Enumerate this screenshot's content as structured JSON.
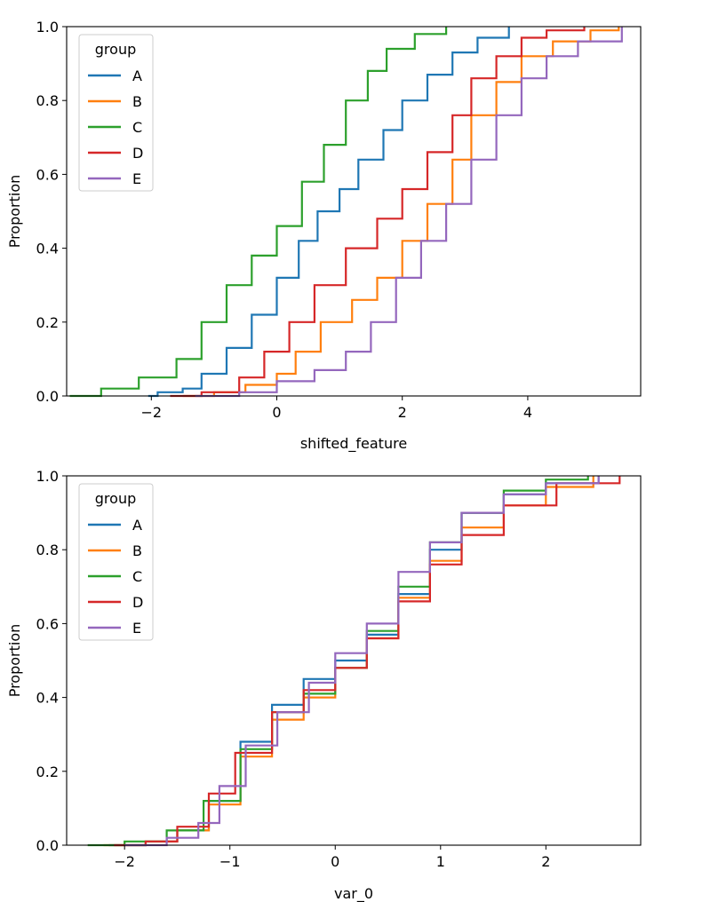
{
  "chart_data": [
    {
      "type": "line",
      "subtype": "ecdf",
      "title": "",
      "xlabel": "shifted_feature",
      "ylabel": "Proportion",
      "xlim": [
        -3.35,
        5.8
      ],
      "ylim": [
        0.0,
        1.0
      ],
      "xticks": [
        -2,
        0,
        2,
        4
      ],
      "xtick_labels": [
        "−2",
        "0",
        "2",
        "4"
      ],
      "yticks": [
        0.0,
        0.2,
        0.4,
        0.6,
        0.8,
        1.0
      ],
      "ytick_labels": [
        "0.0",
        "0.2",
        "0.4",
        "0.6",
        "0.8",
        "1.0"
      ],
      "grid": false,
      "legend": {
        "title": "group",
        "position": "top-left"
      },
      "series": [
        {
          "name": "A",
          "color": "#1f77b4",
          "points": [
            [
              -2.05,
              0.0
            ],
            [
              -1.9,
              0.01
            ],
            [
              -1.5,
              0.02
            ],
            [
              -1.2,
              0.06
            ],
            [
              -0.8,
              0.13
            ],
            [
              -0.4,
              0.22
            ],
            [
              0.0,
              0.32
            ],
            [
              0.35,
              0.42
            ],
            [
              0.65,
              0.5
            ],
            [
              1.0,
              0.56
            ],
            [
              1.3,
              0.64
            ],
            [
              1.7,
              0.72
            ],
            [
              2.0,
              0.8
            ],
            [
              2.4,
              0.87
            ],
            [
              2.8,
              0.93
            ],
            [
              3.2,
              0.97
            ],
            [
              3.7,
              1.0
            ]
          ]
        },
        {
          "name": "B",
          "color": "#ff7f0e",
          "points": [
            [
              -1.5,
              0.0
            ],
            [
              -1.0,
              0.01
            ],
            [
              -0.5,
              0.03
            ],
            [
              0.0,
              0.06
            ],
            [
              0.3,
              0.12
            ],
            [
              0.7,
              0.2
            ],
            [
              1.2,
              0.26
            ],
            [
              1.6,
              0.32
            ],
            [
              2.0,
              0.42
            ],
            [
              2.4,
              0.52
            ],
            [
              2.8,
              0.64
            ],
            [
              3.1,
              0.76
            ],
            [
              3.5,
              0.85
            ],
            [
              3.9,
              0.92
            ],
            [
              4.4,
              0.96
            ],
            [
              5.0,
              0.99
            ],
            [
              5.45,
              1.0
            ]
          ]
        },
        {
          "name": "C",
          "color": "#2ca02c",
          "points": [
            [
              -3.3,
              0.0
            ],
            [
              -2.8,
              0.02
            ],
            [
              -2.2,
              0.05
            ],
            [
              -1.6,
              0.1
            ],
            [
              -1.2,
              0.2
            ],
            [
              -0.8,
              0.3
            ],
            [
              -0.4,
              0.38
            ],
            [
              0.0,
              0.46
            ],
            [
              0.4,
              0.58
            ],
            [
              0.75,
              0.68
            ],
            [
              1.1,
              0.8
            ],
            [
              1.45,
              0.88
            ],
            [
              1.75,
              0.94
            ],
            [
              2.2,
              0.98
            ],
            [
              2.7,
              1.0
            ]
          ]
        },
        {
          "name": "D",
          "color": "#d62728",
          "points": [
            [
              -1.7,
              0.0
            ],
            [
              -1.2,
              0.01
            ],
            [
              -0.6,
              0.05
            ],
            [
              -0.2,
              0.12
            ],
            [
              0.2,
              0.2
            ],
            [
              0.6,
              0.3
            ],
            [
              1.1,
              0.4
            ],
            [
              1.6,
              0.48
            ],
            [
              2.0,
              0.56
            ],
            [
              2.4,
              0.66
            ],
            [
              2.8,
              0.76
            ],
            [
              3.1,
              0.86
            ],
            [
              3.5,
              0.92
            ],
            [
              3.9,
              0.97
            ],
            [
              4.3,
              0.99
            ],
            [
              4.9,
              1.0
            ]
          ]
        },
        {
          "name": "E",
          "color": "#9467bd",
          "points": [
            [
              -1.3,
              0.0
            ],
            [
              -0.6,
              0.01
            ],
            [
              0.0,
              0.04
            ],
            [
              0.6,
              0.07
            ],
            [
              1.1,
              0.12
            ],
            [
              1.5,
              0.2
            ],
            [
              1.9,
              0.32
            ],
            [
              2.3,
              0.42
            ],
            [
              2.7,
              0.52
            ],
            [
              3.1,
              0.64
            ],
            [
              3.5,
              0.76
            ],
            [
              3.9,
              0.86
            ],
            [
              4.3,
              0.92
            ],
            [
              4.8,
              0.96
            ],
            [
              5.5,
              1.0
            ]
          ]
        }
      ]
    },
    {
      "type": "line",
      "subtype": "ecdf",
      "title": "",
      "xlabel": "var_0",
      "ylabel": "Proportion",
      "xlim": [
        -2.55,
        2.9
      ],
      "ylim": [
        0.0,
        1.0
      ],
      "xticks": [
        -2,
        -1,
        0,
        1,
        2
      ],
      "xtick_labels": [
        "−2",
        "−1",
        "0",
        "1",
        "2"
      ],
      "yticks": [
        0.0,
        0.2,
        0.4,
        0.6,
        0.8,
        1.0
      ],
      "ytick_labels": [
        "0.0",
        "0.2",
        "0.4",
        "0.6",
        "0.8",
        "1.0"
      ],
      "grid": false,
      "legend": {
        "title": "group",
        "position": "top-left"
      },
      "series": [
        {
          "name": "A",
          "color": "#1f77b4",
          "points": [
            [
              -2.15,
              0.0
            ],
            [
              -1.8,
              0.01
            ],
            [
              -1.5,
              0.04
            ],
            [
              -1.2,
              0.12
            ],
            [
              -0.9,
              0.28
            ],
            [
              -0.6,
              0.38
            ],
            [
              -0.3,
              0.45
            ],
            [
              0.0,
              0.5
            ],
            [
              0.3,
              0.57
            ],
            [
              0.6,
              0.68
            ],
            [
              0.9,
              0.8
            ],
            [
              1.2,
              0.9
            ],
            [
              1.6,
              0.95
            ],
            [
              2.0,
              0.98
            ],
            [
              2.5,
              1.0
            ]
          ]
        },
        {
          "name": "B",
          "color": "#ff7f0e",
          "points": [
            [
              -2.2,
              0.0
            ],
            [
              -1.8,
              0.01
            ],
            [
              -1.5,
              0.04
            ],
            [
              -1.2,
              0.11
            ],
            [
              -0.9,
              0.24
            ],
            [
              -0.6,
              0.34
            ],
            [
              -0.3,
              0.4
            ],
            [
              0.0,
              0.48
            ],
            [
              0.3,
              0.56
            ],
            [
              0.6,
              0.67
            ],
            [
              0.9,
              0.77
            ],
            [
              1.2,
              0.86
            ],
            [
              1.6,
              0.92
            ],
            [
              2.0,
              0.97
            ],
            [
              2.45,
              1.0
            ]
          ]
        },
        {
          "name": "C",
          "color": "#2ca02c",
          "points": [
            [
              -2.35,
              0.0
            ],
            [
              -2.0,
              0.01
            ],
            [
              -1.6,
              0.04
            ],
            [
              -1.25,
              0.12
            ],
            [
              -0.9,
              0.26
            ],
            [
              -0.6,
              0.36
            ],
            [
              -0.3,
              0.41
            ],
            [
              0.0,
              0.48
            ],
            [
              0.3,
              0.58
            ],
            [
              0.6,
              0.7
            ],
            [
              0.9,
              0.82
            ],
            [
              1.2,
              0.9
            ],
            [
              1.6,
              0.96
            ],
            [
              2.0,
              0.99
            ],
            [
              2.4,
              1.0
            ]
          ]
        },
        {
          "name": "D",
          "color": "#d62728",
          "points": [
            [
              -2.1,
              0.0
            ],
            [
              -1.8,
              0.01
            ],
            [
              -1.5,
              0.05
            ],
            [
              -1.2,
              0.14
            ],
            [
              -0.95,
              0.25
            ],
            [
              -0.6,
              0.36
            ],
            [
              -0.3,
              0.42
            ],
            [
              0.0,
              0.48
            ],
            [
              0.3,
              0.56
            ],
            [
              0.6,
              0.66
            ],
            [
              0.9,
              0.76
            ],
            [
              1.2,
              0.84
            ],
            [
              1.6,
              0.92
            ],
            [
              2.1,
              0.98
            ],
            [
              2.7,
              1.0
            ]
          ]
        },
        {
          "name": "E",
          "color": "#9467bd",
          "points": [
            [
              -2.0,
              0.0
            ],
            [
              -1.6,
              0.02
            ],
            [
              -1.3,
              0.06
            ],
            [
              -1.1,
              0.16
            ],
            [
              -0.85,
              0.27
            ],
            [
              -0.55,
              0.36
            ],
            [
              -0.25,
              0.44
            ],
            [
              0.0,
              0.52
            ],
            [
              0.3,
              0.6
            ],
            [
              0.6,
              0.74
            ],
            [
              0.9,
              0.82
            ],
            [
              1.2,
              0.9
            ],
            [
              1.6,
              0.95
            ],
            [
              2.0,
              0.98
            ],
            [
              2.5,
              1.0
            ]
          ]
        }
      ]
    }
  ]
}
